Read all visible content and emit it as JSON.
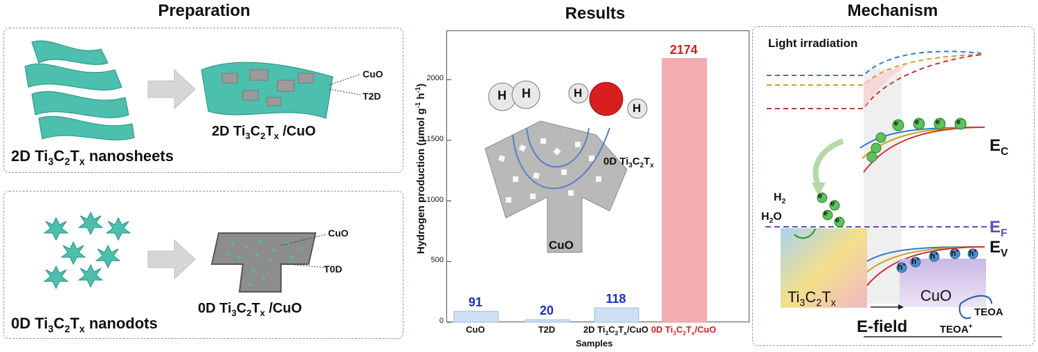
{
  "sections": {
    "preparation": "Preparation",
    "results": "Results",
    "mechanism": "Mechanism"
  },
  "preparation": {
    "top": {
      "left_caption": {
        "pre": "2D Ti",
        "s1": "3",
        "m1": "C",
        "s2": "2",
        "m2": "T",
        "s3": "x",
        "post": " nanosheets"
      },
      "right_caption": {
        "pre": "2D Ti",
        "s1": "3",
        "m1": "C",
        "s2": "2",
        "m2": "T",
        "s3": "x",
        "post": " /CuO"
      },
      "label_cuo": "CuO",
      "label_t2d": "T2D"
    },
    "bottom": {
      "left_caption": {
        "pre": "0D Ti",
        "s1": "3",
        "m1": "C",
        "s2": "2",
        "m2": "T",
        "s3": "x",
        "post": " nanodots"
      },
      "right_caption": {
        "pre": "0D Ti",
        "s1": "3",
        "m1": "C",
        "s2": "2",
        "m2": "T",
        "s3": "x",
        "post": " /CuO"
      },
      "label_cuo": "CuO",
      "label_t0d": "T0D"
    }
  },
  "results": {
    "inset": {
      "h1": "H",
      "h2": "H",
      "h3": "H",
      "h4": "H",
      "dot_label": {
        "pre": "0D Ti",
        "s1": "3",
        "m1": "C",
        "s2": "2",
        "m2": "T",
        "s3": "x"
      },
      "cuo": "CuO"
    },
    "ylabel": {
      "pre": "Hydrogen production (μmol g",
      "sup1": "-1",
      "mid": " h",
      "sup2": "-1",
      "post": ")"
    },
    "colors": {
      "bar_blue": "#cfe0f5",
      "bar_red": "#f2aeb0",
      "value_blue": "#1a2fbf",
      "value_red": "#d21f1f"
    }
  },
  "chart_data": {
    "type": "bar",
    "categories": [
      "CuO",
      "T2D",
      "2D Ti3C2Tx/CuO",
      "0D Ti3C2Tx/CuO"
    ],
    "category_labels": [
      {
        "pre": "CuO"
      },
      {
        "pre": "T2D"
      },
      {
        "pre": "2D Ti",
        "s1": "3",
        "m1": "C",
        "s2": "2",
        "m2": "T",
        "s3": "x",
        "post": "/CuO"
      },
      {
        "pre": "0D Ti",
        "s1": "3",
        "m1": "C",
        "s2": "2",
        "m2": "T",
        "s3": "x",
        "post": "/CuO"
      }
    ],
    "values": [
      91,
      20,
      118,
      2174
    ],
    "value_labels": [
      "91",
      "20",
      "118",
      "2174"
    ],
    "xlabel": "Samples",
    "ylim": [
      0,
      2400
    ],
    "yticks": [
      0,
      500,
      1000,
      1500,
      2000
    ],
    "ytick_labels": [
      "0",
      "500",
      "1000",
      "1500",
      "2000"
    ],
    "grid": false
  },
  "mechanism": {
    "light": "Light irradiation",
    "ec": {
      "main": "E",
      "sub": "C"
    },
    "ef": {
      "main": "E",
      "sub": "F"
    },
    "ev": {
      "main": "E",
      "sub": "V"
    },
    "h2": {
      "pre": "H",
      "sub": "2"
    },
    "h2o": {
      "pre": "H",
      "sub": "2",
      "post": "O"
    },
    "electron": "e",
    "electron_sup": "-",
    "hole": "h",
    "hole_sup": "+",
    "ti_label": {
      "pre": "Ti",
      "s1": "3",
      "m1": "C",
      "s2": "2",
      "m2": "T",
      "s3": "x"
    },
    "cuo": "CuO",
    "efield": "E-field",
    "teoa": "TEOA",
    "teoa_plus": {
      "pre": "TEOA",
      "sup": "+"
    },
    "colors": {
      "ef_line": "#5a4fbf",
      "ef_text": "#5a4fbf"
    }
  }
}
